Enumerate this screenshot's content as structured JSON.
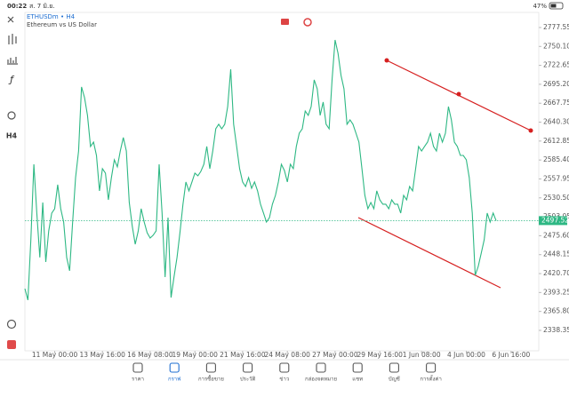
{
  "status_bar": {
    "time": "00:22",
    "date": "ส. 7 มิ.ย.",
    "battery": "47%"
  },
  "toolbar": {
    "timeframe": "H4"
  },
  "chart_data": {
    "type": "line",
    "symbol": "ETHUSDm • H4",
    "description": "Ethereum vs US Dollar",
    "series": [
      {
        "name": "ETHUSDm",
        "color": "#2eb884",
        "values": [
          2398.9,
          2382.2,
          2469.7,
          2579.2,
          2508.4,
          2444.0,
          2523.8,
          2437.5,
          2482.6,
          2508.4,
          2514.8,
          2549.6,
          2514.8,
          2495.5,
          2444.0,
          2424.7,
          2495.5,
          2559.9,
          2598.5,
          2691.3,
          2675.8,
          2650.1,
          2605.0,
          2611.4,
          2592.1,
          2540.6,
          2572.8,
          2566.3,
          2527.7,
          2559.9,
          2585.7,
          2575.4,
          2598.5,
          2617.9,
          2598.5,
          2523.8,
          2489.1,
          2463.3,
          2482.6,
          2514.8,
          2495.5,
          2480.0,
          2472.3,
          2476.2,
          2482.6,
          2579.2,
          2508.4,
          2415.6,
          2501.9,
          2386.0,
          2415.6,
          2444.0,
          2480.0,
          2521.3,
          2553.5,
          2540.6,
          2553.5,
          2566.3,
          2562.5,
          2568.9,
          2579.2,
          2605.0,
          2572.8,
          2598.5,
          2630.7,
          2637.2,
          2630.7,
          2637.2,
          2662.9,
          2717.0,
          2637.2,
          2605.0,
          2572.8,
          2553.5,
          2547.0,
          2559.9,
          2544.4,
          2553.5,
          2540.6,
          2521.3,
          2508.4,
          2495.5,
          2501.9,
          2521.3,
          2534.1,
          2553.5,
          2579.2,
          2570.2,
          2553.5,
          2579.2,
          2572.8,
          2605.0,
          2624.3,
          2630.7,
          2656.5,
          2650.1,
          2662.9,
          2701.6,
          2688.7,
          2650.1,
          2669.4,
          2637.2,
          2630.7,
          2701.6,
          2759.5,
          2740.2,
          2708.0,
          2688.7,
          2637.2,
          2643.6,
          2637.2,
          2624.3,
          2611.4,
          2572.8,
          2534.1,
          2514.8,
          2523.8,
          2514.8,
          2540.6,
          2527.7,
          2521.3,
          2521.3,
          2514.8,
          2527.7,
          2521.3,
          2521.3,
          2508.4,
          2534.1,
          2527.7,
          2547.0,
          2540.6,
          2572.8,
          2605.0,
          2598.5,
          2605.0,
          2611.4,
          2624.3,
          2605.0,
          2598.5,
          2624.3,
          2611.4,
          2624.3,
          2662.9,
          2643.6,
          2611.4,
          2605.0,
          2592.1,
          2592.1,
          2585.7,
          2559.9,
          2508.4,
          2418.2,
          2431.1,
          2450.4,
          2469.7,
          2508.4,
          2495.5,
          2508.4,
          2497.52
        ]
      }
    ],
    "last_price": 2497.52,
    "last_price_color": "#2eb884",
    "xlim": [
      0,
      172.3
    ],
    "xticks": [
      {
        "value": 10,
        "label": "11 May 00:00"
      },
      {
        "value": 26,
        "label": "13 May 16:00"
      },
      {
        "value": 42,
        "label": "16 May 08:00"
      },
      {
        "value": 57,
        "label": "19 May 00:00"
      },
      {
        "value": 73,
        "label": "21 May 16:00"
      },
      {
        "value": 88,
        "label": "24 May 08:00"
      },
      {
        "value": 104,
        "label": "27 May 00:00"
      },
      {
        "value": 119,
        "label": "29 May 16:00"
      },
      {
        "value": 133,
        "label": "1 Jun 08:00"
      },
      {
        "value": 148,
        "label": "4 Jun 00:00"
      },
      {
        "value": 163,
        "label": "6 Jun 16:00"
      }
    ],
    "ylim": [
      2308.7,
      2799.4
    ],
    "yticks": [
      2777.55,
      {
        "value": 2750.1,
        "label": "2750.10"
      },
      2722.65,
      {
        "value": 2695.2,
        "label": "2695.20"
      },
      2667.75,
      {
        "value": 2640.3,
        "label": "2640.30"
      },
      2612.85,
      {
        "value": 2585.4,
        "label": "2585.40"
      },
      2557.95,
      {
        "value": 2530.5,
        "label": "2530.50"
      },
      2503.05,
      {
        "value": 2475.6,
        "label": "2475.60"
      },
      2448.15,
      {
        "value": 2420.7,
        "label": "2420.70"
      },
      2393.25,
      {
        "value": 2365.8,
        "label": "2365.80"
      },
      2338.35
    ]
  },
  "nav": {
    "items": [
      "ราคา",
      "กราฟ",
      "การซื้อขาย",
      "ประวัติ",
      "ข่าว",
      "กล่องจดหมาย",
      "แชท",
      "บัญชี",
      "การตั้งค่า"
    ]
  }
}
